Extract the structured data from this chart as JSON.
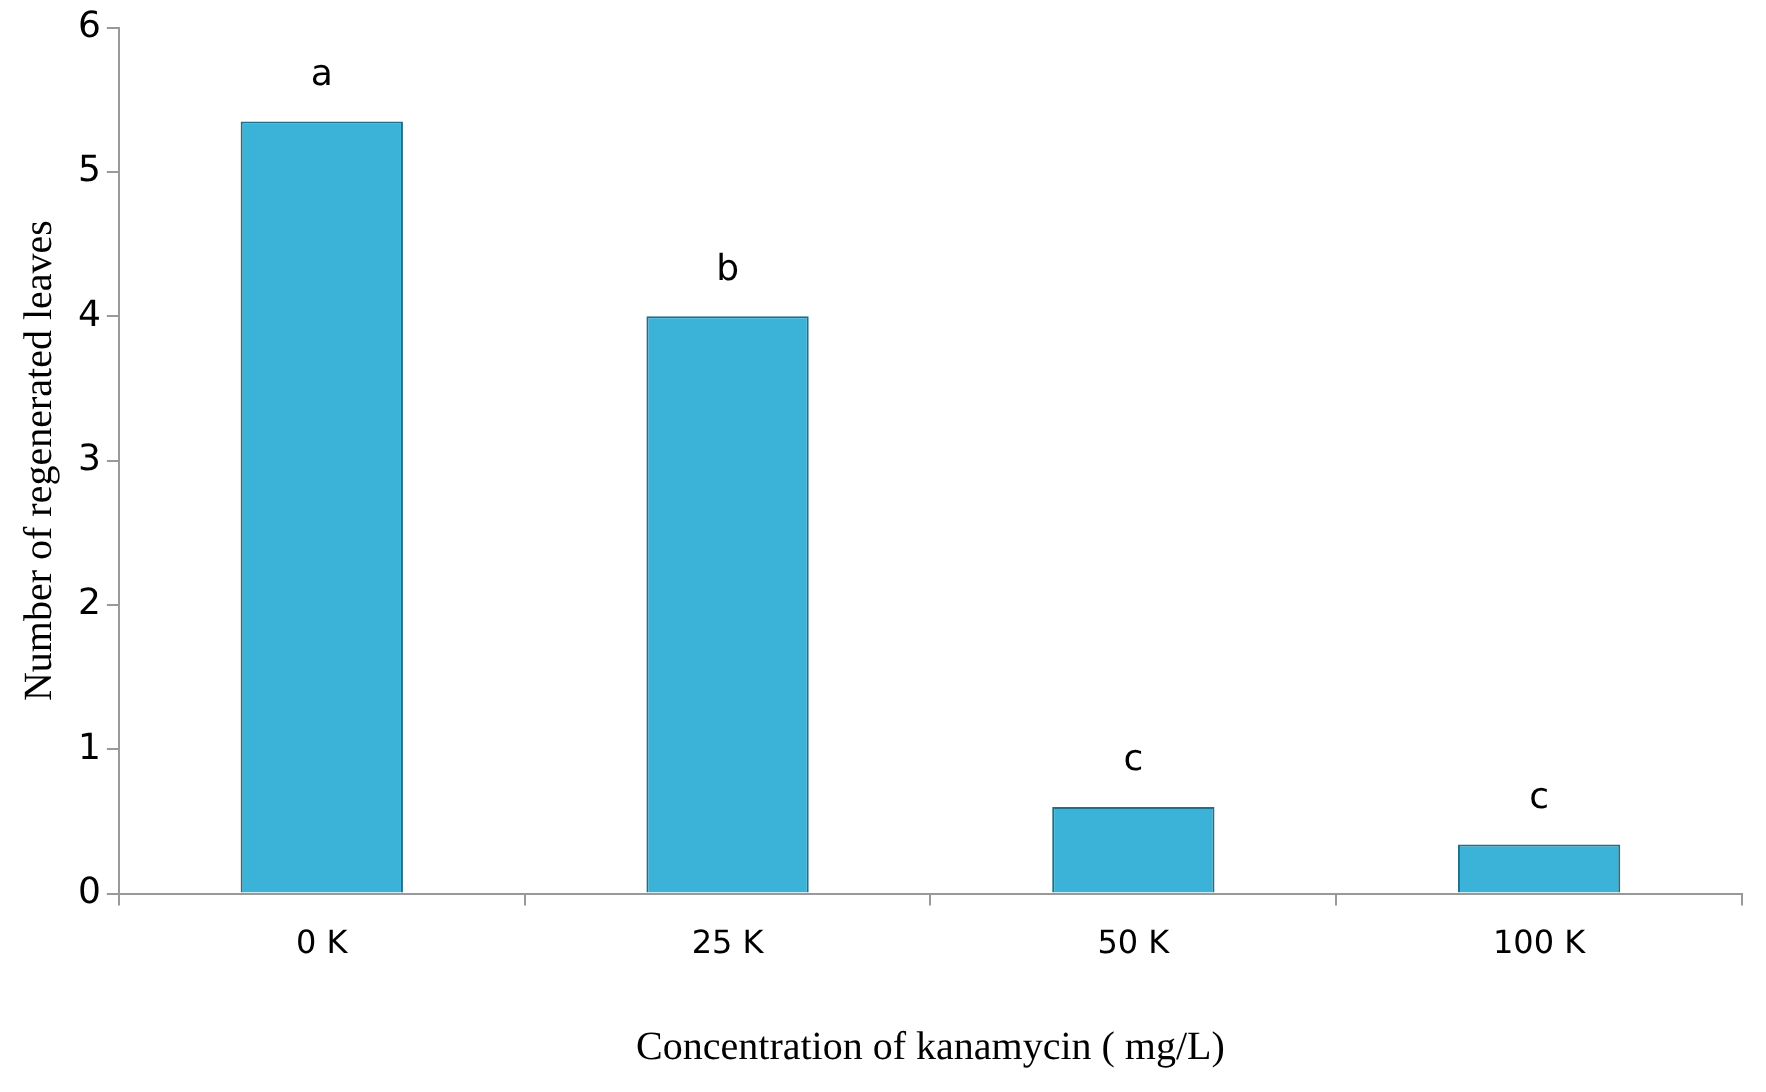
{
  "chart_data": {
    "type": "bar",
    "xlabel": "Concentration of kanamycin ( mg/L)",
    "ylabel": "Number of regenerated leaves",
    "categories": [
      "0 K",
      "25 K",
      "50 K",
      "100 K"
    ],
    "values": [
      5.35,
      4.0,
      0.6,
      0.34
    ],
    "color": "#3bb3d8",
    "ylim": [
      0,
      6
    ],
    "yticks": [
      0,
      1,
      2,
      3,
      4,
      5,
      6
    ],
    "grid": false,
    "legend": false,
    "annotations": [
      {
        "text": "a",
        "x": "0 K",
        "y": 5.35
      },
      {
        "text": "b",
        "x": "25 K",
        "y": 4.0
      },
      {
        "text": "c",
        "x": "50 K",
        "y": 0.6
      },
      {
        "text": "c",
        "x": "100 K",
        "y": 0.34
      }
    ]
  }
}
